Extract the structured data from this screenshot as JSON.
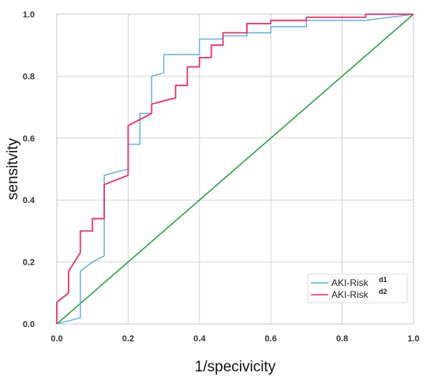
{
  "chart_data": {
    "type": "line",
    "xlabel": "1/specivicity",
    "ylabel": "sensitvity",
    "xlim": [
      0,
      1
    ],
    "ylim": [
      0,
      1
    ],
    "x_ticks": [
      "0.0",
      "0.2",
      "0.4",
      "0.6",
      "0.8",
      "1.0"
    ],
    "y_ticks": [
      "0.0",
      "0.2",
      "0.4",
      "0.6",
      "0.8",
      "1.0"
    ],
    "grid": true,
    "legend_position": "bottom-right",
    "series": [
      {
        "name": "AKI-Risk",
        "superscript": "d1",
        "color": "#5aaee0",
        "x": [
          0,
          0.066,
          0.066,
          0.1,
          0.133,
          0.133,
          0.2,
          0.2,
          0.233,
          0.233,
          0.266,
          0.266,
          0.3,
          0.3,
          0.4,
          0.4,
          0.466,
          0.466,
          0.533,
          0.533,
          0.6,
          0.6,
          0.7,
          0.7,
          0.866,
          1.0
        ],
        "y": [
          0,
          0.02,
          0.17,
          0.2,
          0.22,
          0.48,
          0.5,
          0.58,
          0.58,
          0.68,
          0.68,
          0.8,
          0.81,
          0.87,
          0.87,
          0.92,
          0.92,
          0.93,
          0.93,
          0.94,
          0.94,
          0.96,
          0.96,
          0.98,
          0.98,
          1.0
        ]
      },
      {
        "name": "AKI-Risk",
        "superscript": "d2",
        "color": "#e8336b",
        "x": [
          0,
          0,
          0.033,
          0.033,
          0.066,
          0.066,
          0.1,
          0.1,
          0.133,
          0.133,
          0.2,
          0.2,
          0.266,
          0.266,
          0.333,
          0.333,
          0.366,
          0.366,
          0.4,
          0.4,
          0.433,
          0.433,
          0.466,
          0.466,
          0.533,
          0.533,
          0.6,
          0.6,
          0.7,
          0.7,
          0.866,
          0.866,
          1.0
        ],
        "y": [
          0,
          0.07,
          0.1,
          0.17,
          0.23,
          0.3,
          0.3,
          0.34,
          0.34,
          0.45,
          0.48,
          0.64,
          0.68,
          0.71,
          0.73,
          0.77,
          0.77,
          0.83,
          0.83,
          0.86,
          0.86,
          0.9,
          0.9,
          0.94,
          0.94,
          0.97,
          0.97,
          0.98,
          0.98,
          0.99,
          0.99,
          1.0,
          1.0
        ]
      }
    ],
    "reference_line": {
      "x": [
        0,
        1
      ],
      "y": [
        0,
        1
      ],
      "color": "#23a040"
    }
  }
}
